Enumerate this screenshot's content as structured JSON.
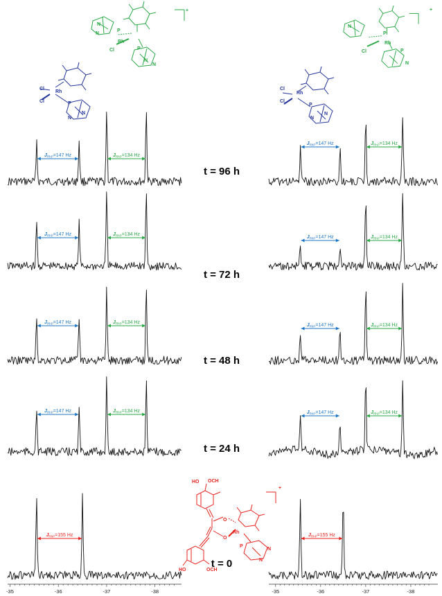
{
  "colors": {
    "blue": "#1f77c4",
    "green": "#2aa845",
    "red": "#e8231f",
    "trace": "#111111",
    "struct_blue": "#22349a"
  },
  "chart_data": {
    "type": "line",
    "xaxis": {
      "ticks": [
        "-35",
        "-36",
        "-37",
        "-38"
      ],
      "reversed": true,
      "xlim": [
        -34.9,
        -38.6
      ]
    },
    "panels": [
      {
        "time": "t = 96 h",
        "species": [
          "blue",
          "green"
        ],
        "j_labels": [
          {
            "text": "=147 Hz",
            "color": "blue"
          },
          {
            "text": "=134 Hz",
            "color": "green"
          }
        ]
      },
      {
        "time": "t = 72 h",
        "species": [
          "blue",
          "green"
        ],
        "j_labels": [
          {
            "text": "=147 Hz",
            "color": "blue"
          },
          {
            "text": "=134 Hz",
            "color": "green"
          }
        ]
      },
      {
        "time": "t = 48 h",
        "species": [
          "blue",
          "green"
        ],
        "j_labels": [
          {
            "text": "=147 Hz",
            "color": "blue"
          },
          {
            "text": "=134 Hz",
            "color": "green"
          }
        ]
      },
      {
        "time": "t = 24 h",
        "species": [
          "blue",
          "green"
        ],
        "j_labels": [
          {
            "text": "=147 Hz",
            "color": "blue"
          },
          {
            "text": "=134 Hz",
            "color": "green"
          }
        ]
      },
      {
        "time": "t = 0",
        "species": [
          "red"
        ],
        "j_labels": [
          {
            "text": "=155 Hz",
            "color": "red"
          }
        ]
      }
    ],
    "coupling_constants_hz": {
      "blue": 147,
      "green": 134,
      "red": 155
    }
  },
  "labels": {
    "j_symbol": "J",
    "j_subscript": "RhP",
    "rh": "Rh",
    "p": "P",
    "cl": "Cl",
    "n": "N",
    "ho": "HO",
    "och3": "OCH",
    "o": "O",
    "charge": "+"
  }
}
